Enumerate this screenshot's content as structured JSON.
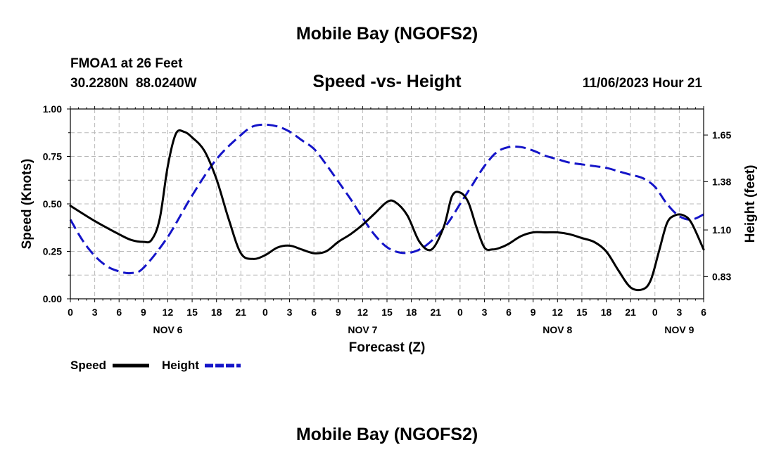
{
  "chart_data": {
    "type": "line",
    "title": "Mobile Bay (NGOFS2)",
    "footer_title": "Mobile Bay (NGOFS2)",
    "subtitle": "Speed -vs- Height",
    "station": "FMOA1 at 26 Feet",
    "coordinates": "30.2280N  88.0240W",
    "run_time": "11/06/2023 Hour 21",
    "xlabel": "Forecast (Z)",
    "ylabel": "Speed (Knots)",
    "y2label": "Height (feet)",
    "xlim": [
      0,
      78
    ],
    "ylim": [
      0,
      1
    ],
    "y2lim": [
      0.701,
      1.801
    ],
    "x_tick_step": 3,
    "x_tick_labels": [
      "0",
      "3",
      "6",
      "9",
      "12",
      "15",
      "18",
      "21",
      "0",
      "3",
      "6",
      "9",
      "12",
      "15",
      "18",
      "21",
      "0",
      "3",
      "6",
      "9",
      "12",
      "15",
      "18",
      "21",
      "0",
      "3",
      "6"
    ],
    "y_ticks": [
      0,
      0.25,
      0.5,
      0.75,
      1.0
    ],
    "y_tick_labels": [
      "0.00",
      "0.25",
      "0.50",
      "0.75",
      "1.00"
    ],
    "y2_ticks": [
      0.83,
      1.1,
      1.38,
      1.65
    ],
    "y2_tick_labels": [
      "0.83",
      "1.10",
      "1.38",
      "1.65"
    ],
    "date_labels": [
      {
        "label": "NOV 6",
        "x": 12
      },
      {
        "label": "NOV 7",
        "x": 36
      },
      {
        "label": "NOV 8",
        "x": 60
      },
      {
        "label": "NOV 9",
        "x": 75
      }
    ],
    "legend": {
      "speed_label": "Speed",
      "height_label": "Height"
    },
    "series": [
      {
        "name": "Speed",
        "axis": "left",
        "color": "#000000",
        "x": [
          0,
          3,
          6,
          7.5,
          9,
          10,
          11,
          12,
          13,
          14,
          15,
          16.5,
          18,
          19.5,
          21,
          22.5,
          24,
          25.5,
          27,
          28.5,
          30,
          31.5,
          33,
          34.5,
          36,
          37.5,
          39,
          40,
          41.5,
          43,
          44.5,
          46,
          47,
          48,
          49,
          50,
          51,
          52,
          53,
          54,
          55.5,
          57,
          58.5,
          60,
          61.5,
          63,
          64.5,
          66,
          67.5,
          69,
          70.5,
          71.5,
          72.5,
          73.5,
          74.5,
          75.5,
          76.5,
          78
        ],
        "values": [
          0.49,
          0.41,
          0.34,
          0.31,
          0.3,
          0.31,
          0.42,
          0.7,
          0.87,
          0.88,
          0.85,
          0.78,
          0.63,
          0.42,
          0.24,
          0.21,
          0.23,
          0.27,
          0.28,
          0.26,
          0.24,
          0.25,
          0.3,
          0.34,
          0.39,
          0.45,
          0.51,
          0.51,
          0.44,
          0.3,
          0.26,
          0.38,
          0.54,
          0.56,
          0.51,
          0.38,
          0.27,
          0.26,
          0.27,
          0.29,
          0.33,
          0.35,
          0.35,
          0.35,
          0.34,
          0.32,
          0.3,
          0.25,
          0.15,
          0.06,
          0.05,
          0.1,
          0.25,
          0.4,
          0.44,
          0.44,
          0.4,
          0.26
        ]
      },
      {
        "name": "Height",
        "axis": "right",
        "color": "#1414c8",
        "x": [
          0,
          1.5,
          3,
          4.5,
          6,
          7.5,
          9,
          12,
          15,
          18,
          21,
          22.5,
          24,
          25.5,
          27,
          28.5,
          30,
          31.5,
          33,
          34.5,
          36,
          37.5,
          39,
          40.5,
          42,
          43.5,
          45,
          46.5,
          48,
          49.5,
          51,
          52.5,
          54,
          55.5,
          57,
          58.5,
          60,
          61.5,
          63,
          64.5,
          66,
          67.5,
          69,
          70.5,
          72,
          73.5,
          75,
          76.5,
          78
        ],
        "values": [
          1.16,
          1.04,
          0.95,
          0.89,
          0.86,
          0.85,
          0.88,
          1.06,
          1.3,
          1.51,
          1.65,
          1.7,
          1.71,
          1.7,
          1.67,
          1.62,
          1.57,
          1.48,
          1.38,
          1.28,
          1.17,
          1.07,
          1.0,
          0.97,
          0.97,
          1.0,
          1.06,
          1.14,
          1.25,
          1.36,
          1.47,
          1.55,
          1.58,
          1.58,
          1.56,
          1.53,
          1.51,
          1.49,
          1.48,
          1.47,
          1.46,
          1.44,
          1.42,
          1.4,
          1.35,
          1.25,
          1.18,
          1.16,
          1.19
        ]
      }
    ]
  }
}
